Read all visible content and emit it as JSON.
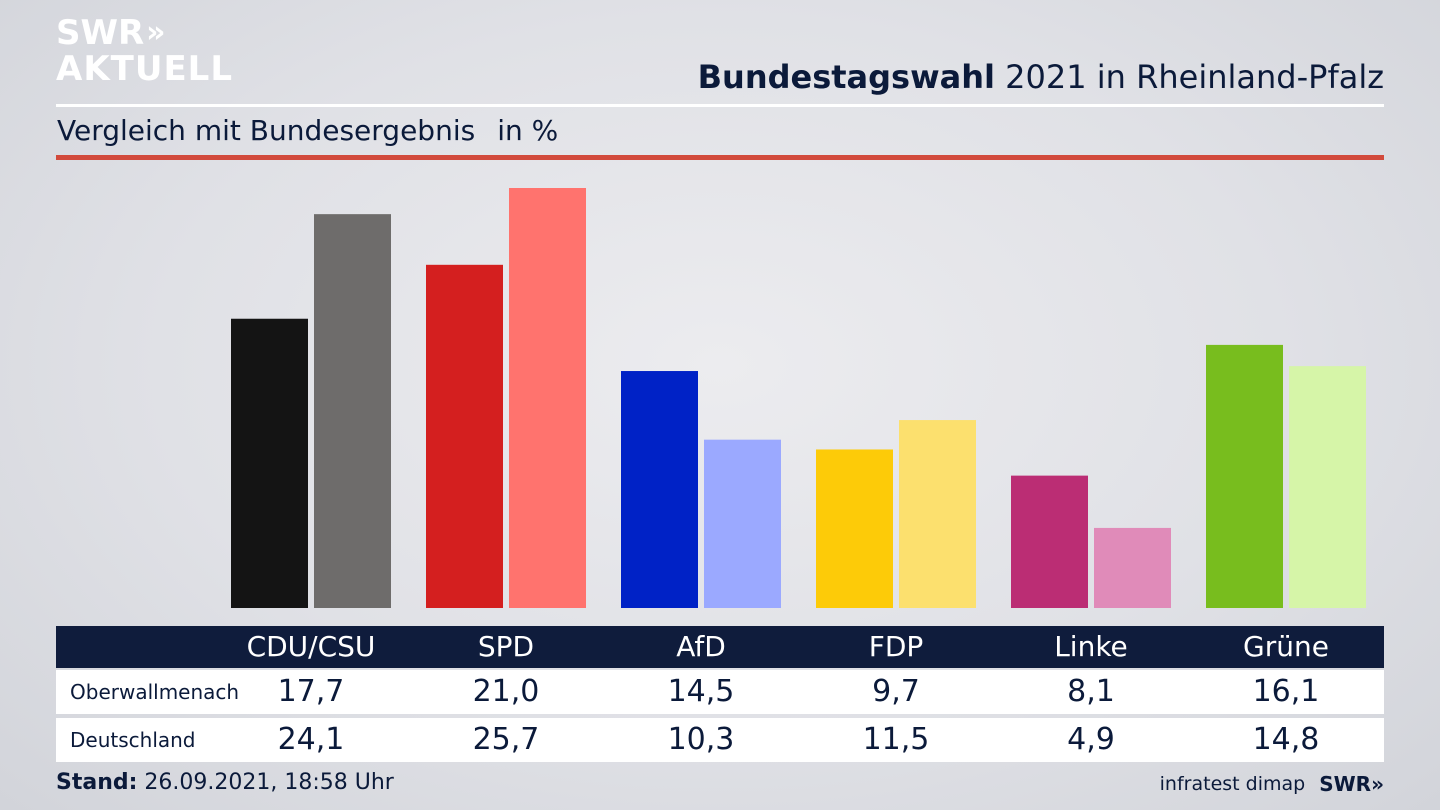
{
  "logo": {
    "line1": "SWR",
    "arrows": "»",
    "line2": "AKTUELL"
  },
  "header": {
    "title_bold": "Bundestagswahl",
    "title_rest": " 2021 in Rheinland-Pfalz",
    "subtitle": "Vergleich mit Bundesergebnis",
    "unit": "in %"
  },
  "colors": {
    "row1": [
      "#141414",
      "#d41f1f",
      "#0022c6",
      "#fdcb08",
      "#bb2d74",
      "#78bd1e"
    ],
    "row2": [
      "#6e6c6b",
      "#ff736e",
      "#9ba9ff",
      "#fce06e",
      "#e08bb9",
      "#d6f5a8"
    ],
    "rule": "#d24a3c",
    "table_header": "#0f1c3c"
  },
  "chart_data": {
    "type": "bar",
    "categories": [
      "CDU/CSU",
      "SPD",
      "AfD",
      "FDP",
      "Linke",
      "Grüne"
    ],
    "series": [
      {
        "name": "Oberwallmenach",
        "values": [
          17.7,
          21.0,
          14.5,
          9.7,
          8.1,
          16.1
        ]
      },
      {
        "name": "Deutschland",
        "values": [
          24.1,
          25.7,
          10.3,
          11.5,
          4.9,
          14.8
        ]
      }
    ],
    "ylim": [
      0,
      25.7
    ]
  },
  "table": {
    "headers": [
      "CDU/CSU",
      "SPD",
      "AfD",
      "FDP",
      "Linke",
      "Grüne"
    ],
    "rows": [
      {
        "label": "Oberwallmenach",
        "values": [
          "17,7",
          "21,0",
          "14,5",
          "9,7",
          "8,1",
          "16,1"
        ]
      },
      {
        "label": "Deutschland",
        "values": [
          "24,1",
          "25,7",
          "10,3",
          "11,5",
          "4,9",
          "14,8"
        ]
      }
    ]
  },
  "footer": {
    "stand_label": "Stand:",
    "stand_value": " 26.09.2021, 18:58 Uhr",
    "source": "infratest dimap",
    "brand": "SWR»"
  }
}
